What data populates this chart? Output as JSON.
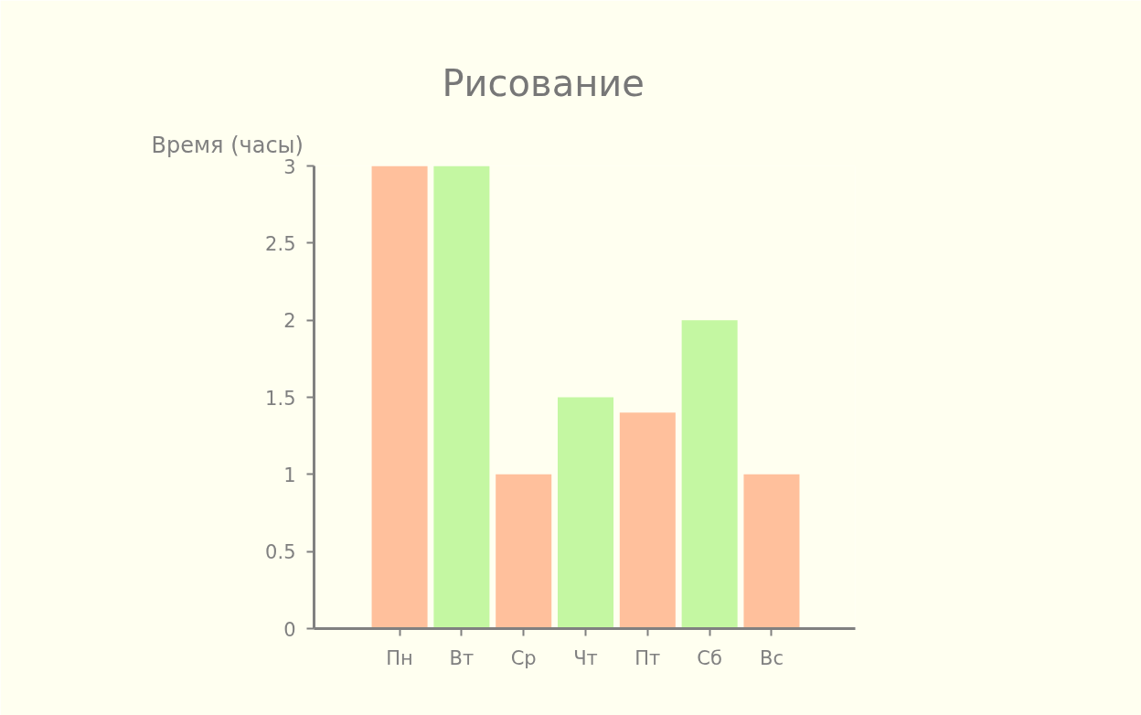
{
  "chart_data": {
    "type": "bar",
    "title": "Рисование",
    "ylabel": "Время (часы)",
    "categories": [
      "Пн",
      "Вт",
      "Ср",
      "Чт",
      "Пт",
      "Сб",
      "Вс"
    ],
    "values": [
      3,
      3,
      1,
      1.5,
      1.4,
      2,
      1
    ],
    "colors": [
      "#ffc09c",
      "#c4f7a2",
      "#ffc09c",
      "#c4f7a2",
      "#ffc09c",
      "#c4f7a2",
      "#ffc09c"
    ],
    "ylim": [
      0,
      3
    ],
    "yticks": [
      0,
      0.5,
      1,
      1.5,
      2,
      2.5,
      3
    ],
    "grid": false
  }
}
